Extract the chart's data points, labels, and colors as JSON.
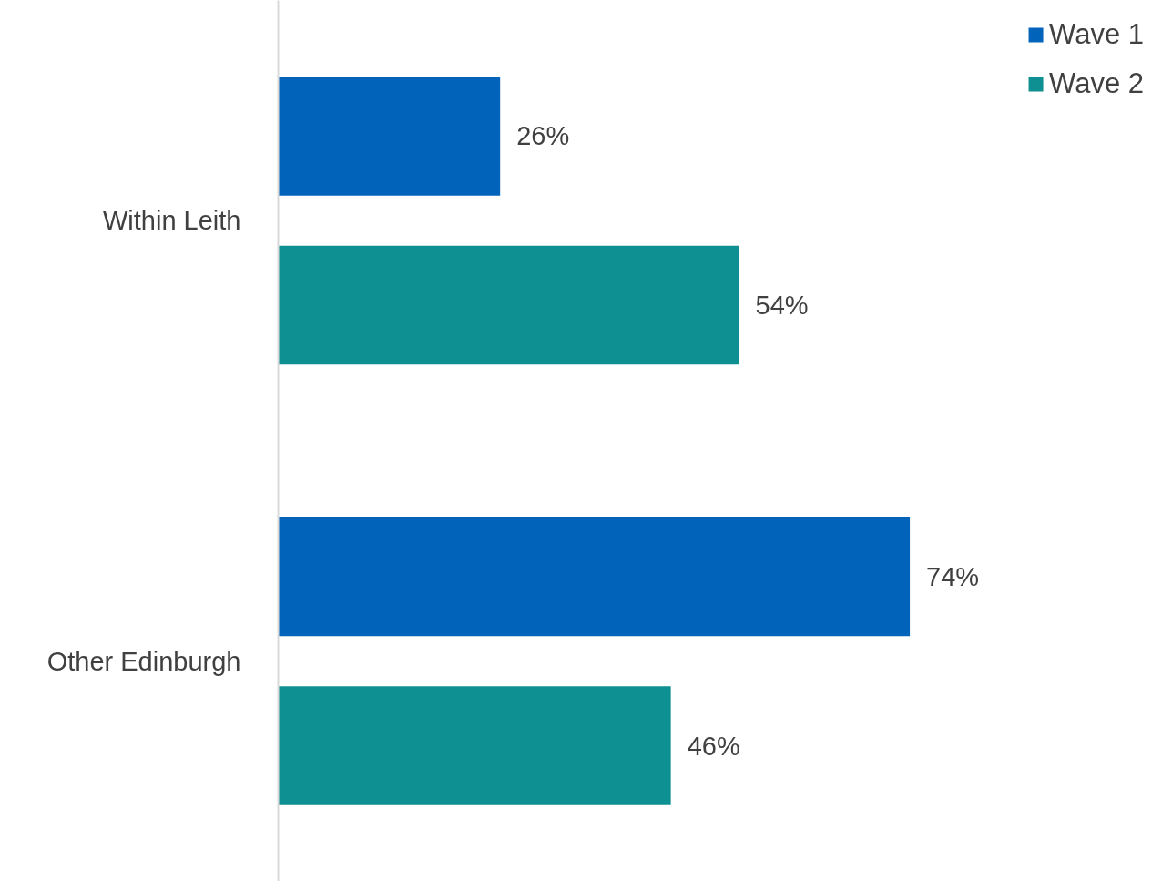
{
  "chart_data": {
    "type": "bar",
    "orientation": "horizontal",
    "categories": [
      "Within Leith",
      "Other Edinburgh"
    ],
    "series": [
      {
        "name": "Wave 1",
        "color": "#0263bb",
        "values": [
          26,
          74
        ],
        "value_labels": [
          "26%",
          "74%"
        ]
      },
      {
        "name": "Wave 2",
        "color": "#0e8f91",
        "values": [
          54,
          46
        ],
        "value_labels": [
          "54%",
          "46%"
        ]
      }
    ],
    "legend": "top right",
    "grid": false,
    "tick_labels": "y"
  }
}
